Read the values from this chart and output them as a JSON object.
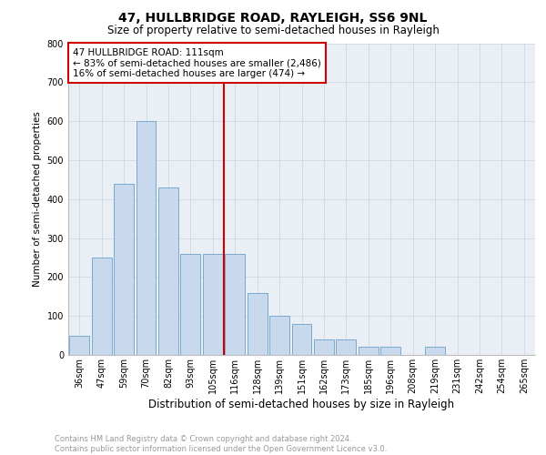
{
  "title": "47, HULLBRIDGE ROAD, RAYLEIGH, SS6 9NL",
  "subtitle": "Size of property relative to semi-detached houses in Rayleigh",
  "xlabel": "Distribution of semi-detached houses by size in Rayleigh",
  "ylabel": "Number of semi-detached properties",
  "categories": [
    "36sqm",
    "47sqm",
    "59sqm",
    "70sqm",
    "82sqm",
    "93sqm",
    "105sqm",
    "116sqm",
    "128sqm",
    "139sqm",
    "151sqm",
    "162sqm",
    "173sqm",
    "185sqm",
    "196sqm",
    "208sqm",
    "219sqm",
    "231sqm",
    "242sqm",
    "254sqm",
    "265sqm"
  ],
  "values": [
    50,
    250,
    440,
    600,
    430,
    260,
    260,
    260,
    160,
    100,
    80,
    40,
    40,
    20,
    20,
    0,
    20,
    0,
    0,
    0,
    0
  ],
  "bar_color": "#c8d9ed",
  "bar_edge_color": "#7aaacf",
  "property_line_x": 6.5,
  "annotation_text_line1": "47 HULLBRIDGE ROAD: 111sqm",
  "annotation_text_line2": "← 83% of semi-detached houses are smaller (2,486)",
  "annotation_text_line3": "16% of semi-detached houses are larger (474) →",
  "annotation_box_color": "#ffffff",
  "annotation_box_edge": "#cc0000",
  "vline_color": "#cc0000",
  "ylim": [
    0,
    800
  ],
  "yticks": [
    0,
    100,
    200,
    300,
    400,
    500,
    600,
    700,
    800
  ],
  "grid_color": "#d0d8e0",
  "bg_color": "#eaeff5",
  "footer_text": "Contains HM Land Registry data © Crown copyright and database right 2024.\nContains public sector information licensed under the Open Government Licence v3.0.",
  "title_fontsize": 10,
  "subtitle_fontsize": 8.5,
  "xlabel_fontsize": 8.5,
  "ylabel_fontsize": 7.5,
  "tick_fontsize": 7,
  "annotation_fontsize": 7.5,
  "footer_fontsize": 6
}
